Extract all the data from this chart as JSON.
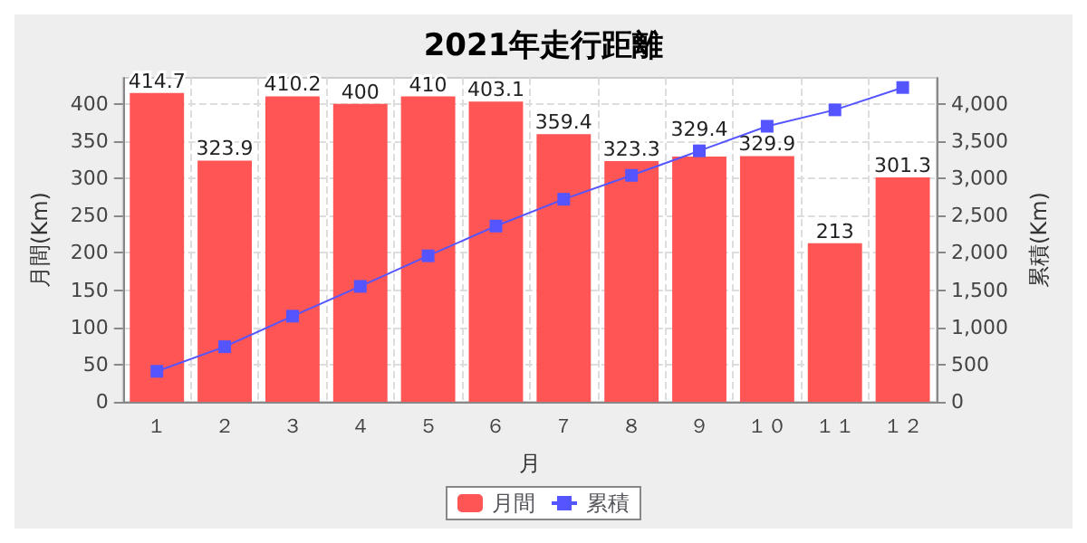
{
  "chart_data": {
    "type": "bar",
    "title": "2021年走行距離",
    "xlabel": "月",
    "ylabel": "月間(Km)",
    "y2label": "累積(Km)",
    "categories": [
      "１",
      "２",
      "３",
      "４",
      "５",
      "６",
      "７",
      "８",
      "９",
      "１０",
      "１１",
      "１２"
    ],
    "series": [
      {
        "name": "月間",
        "color": "#ff5555",
        "values": [
          414.7,
          323.9,
          410.2,
          400,
          410,
          403.1,
          359.4,
          323.3,
          329.4,
          329.9,
          213,
          301.3
        ],
        "value_labels": [
          "414.7",
          "323.9",
          "410.2",
          "400",
          "410",
          "403.1",
          "359.4",
          "323.3",
          "329.4",
          "329.9",
          "213",
          "301.3"
        ]
      },
      {
        "name": "累積",
        "type": "line",
        "axis": "y2",
        "color": "#5555ff",
        "marker": "square",
        "values": [
          410,
          740,
          1150,
          1550,
          1960,
          2360,
          2720,
          3040,
          3370,
          3700,
          3920,
          4220
        ]
      }
    ],
    "ylim": [
      0,
      435
    ],
    "yticks": [
      0,
      50,
      100,
      150,
      200,
      250,
      300,
      350,
      400
    ],
    "y2lim": [
      0,
      4350
    ],
    "y2ticks": [
      0,
      {
        "value": 500,
        "label": "500"
      },
      {
        "value": 1000,
        "label": "1,000"
      },
      {
        "value": 1500,
        "label": "1,500"
      },
      {
        "value": 2000,
        "label": "2,000"
      },
      {
        "value": 2500,
        "label": "2,500"
      },
      {
        "value": 3000,
        "label": "3,000"
      },
      {
        "value": 3500,
        "label": "3,500"
      },
      {
        "value": 4000,
        "label": "4,000"
      }
    ],
    "grid": true,
    "legend": "bottom"
  }
}
